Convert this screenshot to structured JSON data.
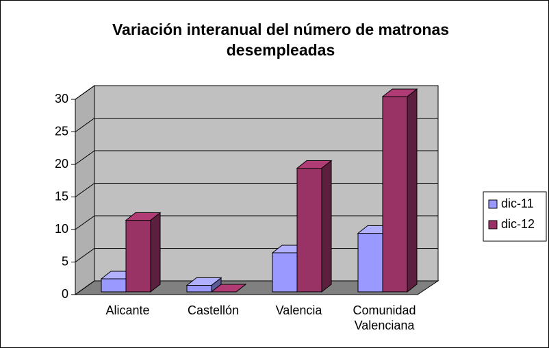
{
  "chart_data": {
    "type": "bar3d",
    "title": "Variación interanual del número de matronas desempleadas",
    "categories": [
      "Alicante",
      "Castellón",
      "Valencia",
      "Comunidad Valenciana"
    ],
    "series": [
      {
        "name": "dic-11",
        "color": "#9999ff",
        "values": [
          2,
          1,
          6,
          9
        ]
      },
      {
        "name": "dic-12",
        "color": "#993366",
        "values": [
          11,
          0,
          19,
          30
        ]
      }
    ],
    "ylim": [
      0,
      30
    ],
    "yticks": [
      0,
      5,
      10,
      15,
      20,
      25,
      30
    ],
    "grid": true,
    "legend": "right"
  }
}
